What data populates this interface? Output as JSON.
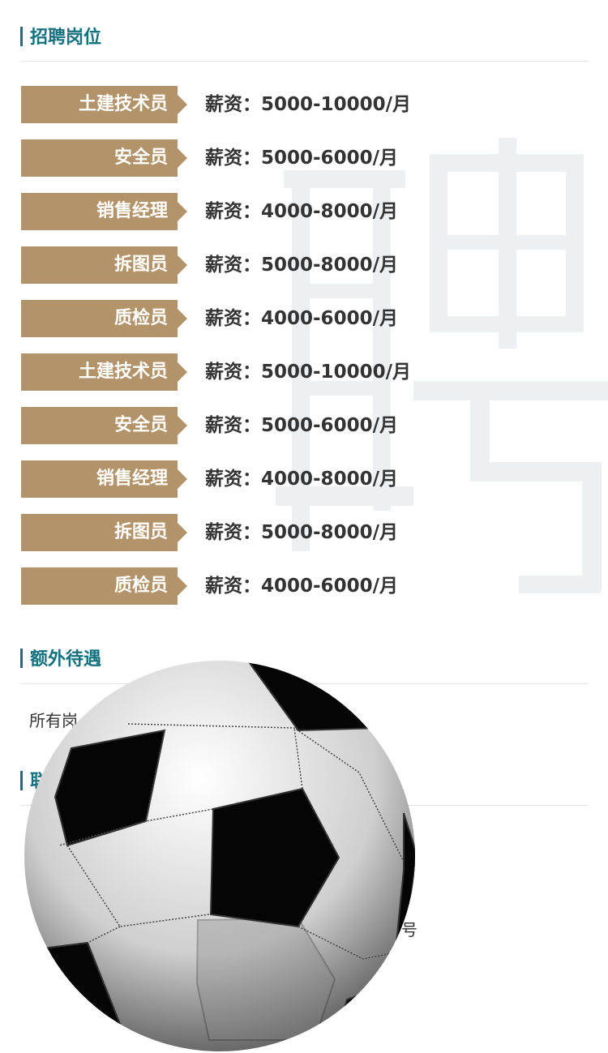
{
  "section1": {
    "title": "招聘岗位"
  },
  "jobs": [
    {
      "name": "土建技术员",
      "salary": "薪资：5000-10000/月"
    },
    {
      "name": "安全员",
      "salary": "薪资：5000-6000/月"
    },
    {
      "name": "销售经理",
      "salary": "薪资：4000-8000/月"
    },
    {
      "name": "拆图员",
      "salary": "薪资：5000-8000/月"
    },
    {
      "name": "质检员",
      "salary": "薪资：4000-6000/月"
    },
    {
      "name": "土建技术员",
      "salary": "薪资：5000-10000/月"
    },
    {
      "name": "安全员",
      "salary": "薪资：5000-6000/月"
    },
    {
      "name": "销售经理",
      "salary": "薪资：4000-8000/月"
    },
    {
      "name": "拆图员",
      "salary": "薪资：5000-8000/月"
    },
    {
      "name": "质检员",
      "salary": "薪资：4000-6000/月"
    }
  ],
  "section2": {
    "title": "额外待遇",
    "text_visible": "所有岗"
  },
  "section3": {
    "title_visible": "联",
    "fragments": [
      "号"
    ]
  },
  "watermark": "聘",
  "colors": {
    "accent": "#14727f",
    "label_bg": "#b3936a"
  }
}
